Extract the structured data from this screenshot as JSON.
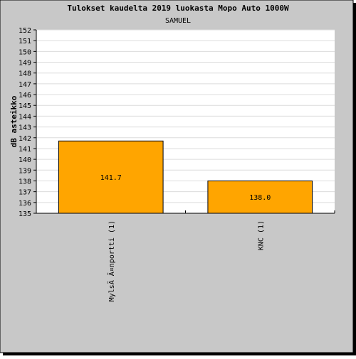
{
  "colors": {
    "background": "#c8c8c8",
    "plot_background": "#ffffff",
    "bar_fill": "#ffa500",
    "bar_stroke": "#000000",
    "grid": "#dcdcdc",
    "text": "#000000"
  },
  "chart_data": {
    "type": "bar",
    "title": "Tulokset kaudelta 2019 luokasta Mopo Auto 1000W",
    "subtitle": "SAMUEL",
    "xlabel": "",
    "ylabel": "dB asteikko",
    "ylim": [
      135,
      152
    ],
    "yticks": [
      135,
      136,
      137,
      138,
      139,
      140,
      141,
      142,
      143,
      144,
      145,
      146,
      147,
      148,
      149,
      150,
      151,
      152
    ],
    "grid": true,
    "categories": [
      "MylsÃ Ã¤nportti (1)",
      "KNC (1)"
    ],
    "values": [
      141.7,
      138.0
    ],
    "data_labels": [
      "141.7",
      "138.0"
    ]
  }
}
